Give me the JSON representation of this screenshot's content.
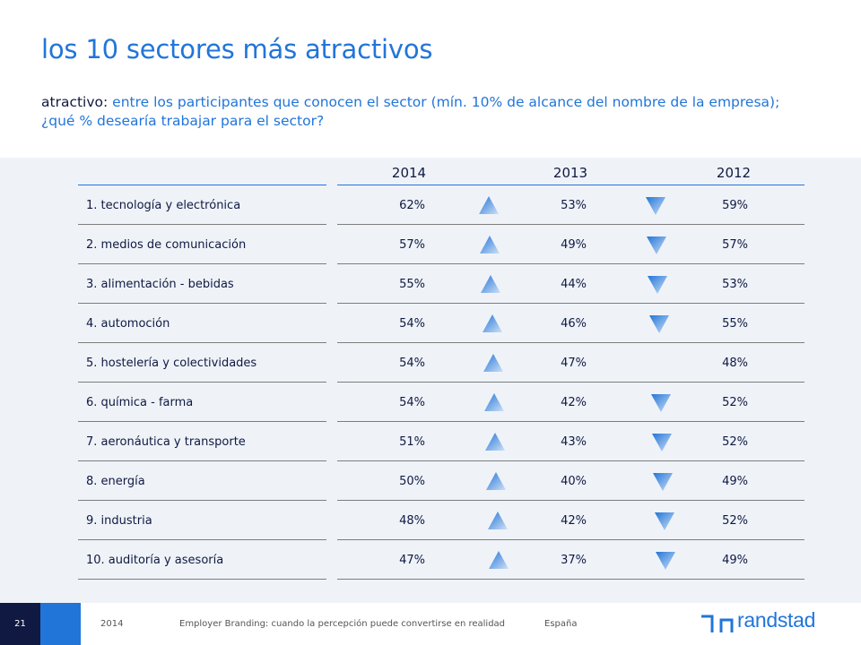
{
  "slide": {
    "title": "los 10 sectores más atractivos",
    "subtitle_lead": "atractivo:",
    "subtitle_rest": " entre los participantes que conocen el sector (mín. 10% de alcance del nombre de la empresa); ¿qué % desearía trabajar para el sector?"
  },
  "table": {
    "years": [
      "2014",
      "2013",
      "2012"
    ],
    "rows": [
      {
        "sector": "1. tecnología y electrónica",
        "v2014": "62%",
        "v2013": "53%",
        "v2012": "59%",
        "trend_14_13": "up",
        "trend_13_12": "down"
      },
      {
        "sector": "2. medios de comunicación",
        "v2014": "57%",
        "v2013": "49%",
        "v2012": "57%",
        "trend_14_13": "up",
        "trend_13_12": "down"
      },
      {
        "sector": "3. alimentación - bebidas",
        "v2014": "55%",
        "v2013": "44%",
        "v2012": "53%",
        "trend_14_13": "up",
        "trend_13_12": "down"
      },
      {
        "sector": "4. automoción",
        "v2014": "54%",
        "v2013": "46%",
        "v2012": "55%",
        "trend_14_13": "up",
        "trend_13_12": "down"
      },
      {
        "sector": "5. hostelería y colectividades",
        "v2014": "54%",
        "v2013": "47%",
        "v2012": "48%",
        "trend_14_13": "up",
        "trend_13_12": "none"
      },
      {
        "sector": "6. química - farma",
        "v2014": "54%",
        "v2013": "42%",
        "v2012": "52%",
        "trend_14_13": "up",
        "trend_13_12": "down"
      },
      {
        "sector": "7. aeronáutica y transporte",
        "v2014": "51%",
        "v2013": "43%",
        "v2012": "52%",
        "trend_14_13": "up",
        "trend_13_12": "down"
      },
      {
        "sector": "8. energía",
        "v2014": "50%",
        "v2013": "40%",
        "v2012": "49%",
        "trend_14_13": "up",
        "trend_13_12": "down"
      },
      {
        "sector": "9. industria",
        "v2014": "48%",
        "v2013": "42%",
        "v2012": "52%",
        "trend_14_13": "up",
        "trend_13_12": "down"
      },
      {
        "sector": "10. auditoría y asesoría",
        "v2014": "47%",
        "v2013": "37%",
        "v2012": "49%",
        "trend_14_13": "up",
        "trend_13_12": "down"
      }
    ]
  },
  "footer": {
    "page_number": "21",
    "year": "2014",
    "report_title": "Employer Branding: cuando la percepción puede convertirse en realidad",
    "country": "España",
    "brand": "randstad"
  },
  "colors": {
    "accent": "#2175d9",
    "dark": "#0f1941",
    "panel": "#eff3f8"
  }
}
